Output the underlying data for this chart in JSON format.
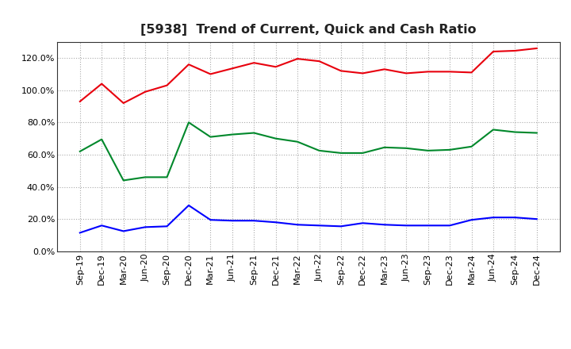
{
  "title": "[5938]  Trend of Current, Quick and Cash Ratio",
  "labels": [
    "Sep-19",
    "Dec-19",
    "Mar-20",
    "Jun-20",
    "Sep-20",
    "Dec-20",
    "Mar-21",
    "Jun-21",
    "Sep-21",
    "Dec-21",
    "Mar-22",
    "Jun-22",
    "Sep-22",
    "Dec-22",
    "Mar-23",
    "Jun-23",
    "Sep-23",
    "Dec-23",
    "Mar-24",
    "Jun-24",
    "Sep-24",
    "Dec-24"
  ],
  "current_ratio": [
    93.0,
    104.0,
    92.0,
    99.0,
    103.0,
    116.0,
    110.0,
    113.5,
    117.0,
    114.5,
    119.5,
    118.0,
    112.0,
    110.5,
    113.0,
    110.5,
    111.5,
    111.5,
    111.0,
    124.0,
    124.5,
    126.0
  ],
  "quick_ratio": [
    62.0,
    69.5,
    44.0,
    46.0,
    46.0,
    80.0,
    71.0,
    72.5,
    73.5,
    70.0,
    68.0,
    62.5,
    61.0,
    61.0,
    64.5,
    64.0,
    62.5,
    63.0,
    65.0,
    75.5,
    74.0,
    73.5
  ],
  "cash_ratio": [
    11.5,
    16.0,
    12.5,
    15.0,
    15.5,
    28.5,
    19.5,
    19.0,
    19.0,
    18.0,
    16.5,
    16.0,
    15.5,
    17.5,
    16.5,
    16.0,
    16.0,
    16.0,
    19.5,
    21.0,
    21.0,
    20.0
  ],
  "current_color": "#e8000d",
  "quick_color": "#00882b",
  "cash_color": "#0000ff",
  "ylim": [
    0,
    130
  ],
  "yticks": [
    0,
    20,
    40,
    60,
    80,
    100,
    120
  ],
  "background_color": "#ffffff",
  "grid_color": "#aaaaaa",
  "title_fontsize": 11.5,
  "legend_fontsize": 9.5,
  "tick_fontsize": 8.0
}
